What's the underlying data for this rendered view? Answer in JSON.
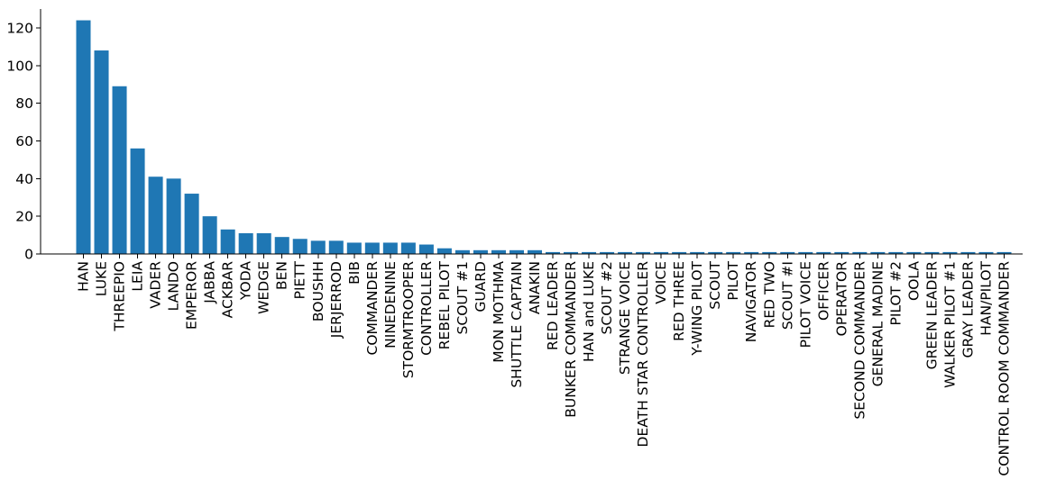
{
  "chart_data": {
    "type": "bar",
    "title": "",
    "xlabel": "",
    "ylabel": "",
    "ylim": [
      0,
      130
    ],
    "yticks": [
      0,
      20,
      40,
      60,
      80,
      100,
      120
    ],
    "grid": false,
    "bar_color": "#1f77b4",
    "categories": [
      "HAN",
      "LUKE",
      "THREEPIO",
      "LEIA",
      "VADER",
      "LANDO",
      "EMPEROR",
      "JABBA",
      "ACKBAR",
      "YODA",
      "WEDGE",
      "BEN",
      "PIETT",
      "BOUSHH",
      "JERJERROD",
      "BIB",
      "COMMANDER",
      "NINEDENINE",
      "STORMTROOPER",
      "CONTROLLER",
      "REBEL PILOT",
      "SCOUT #1",
      "GUARD",
      "MON MOTHMA",
      "SHUTTLE CAPTAIN",
      "ANAKIN",
      "RED LEADER",
      "BUNKER COMMANDER",
      "HAN and LUKE",
      "SCOUT #2",
      "STRANGE VOICE",
      "DEATH STAR CONTROLLER",
      "VOICE",
      "RED THREE",
      "Y-WING PILOT",
      "SCOUT",
      "PILOT",
      "NAVIGATOR",
      "RED TWO",
      "SCOUT #I",
      "PILOT VOICE",
      "OFFICER",
      "OPERATOR",
      "SECOND COMMANDER",
      "GENERAL MADINE",
      "PILOT #2",
      "OOLA",
      "GREEN LEADER",
      "WALKER PILOT #1",
      "GRAY LEADER",
      "HAN/PILOT",
      "CONTROL ROOM COMMANDER"
    ],
    "values": [
      124,
      108,
      89,
      56,
      41,
      40,
      32,
      20,
      13,
      11,
      11,
      9,
      8,
      7,
      7,
      6,
      6,
      6,
      6,
      5,
      3,
      2,
      2,
      2,
      2,
      2,
      1,
      1,
      1,
      1,
      1,
      1,
      1,
      1,
      1,
      1,
      1,
      1,
      1,
      1,
      1,
      1,
      1,
      1,
      1,
      1,
      1,
      1,
      1,
      1,
      1,
      1
    ]
  }
}
